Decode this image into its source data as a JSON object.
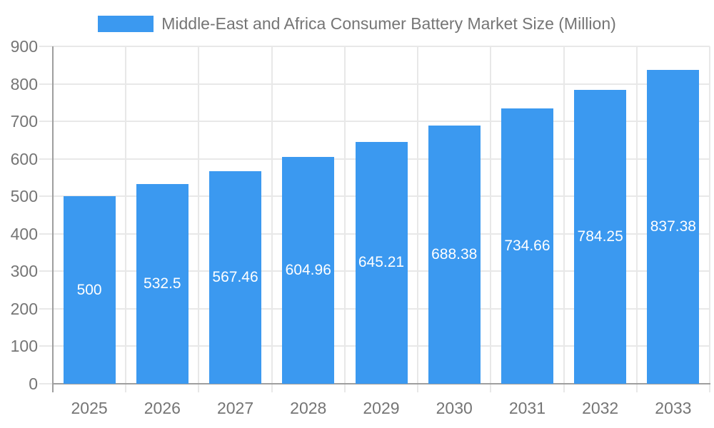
{
  "chart_data": {
    "type": "bar",
    "title": "Middle-East and Africa Consumer Battery Market Size (Million)",
    "categories": [
      "2025",
      "2026",
      "2027",
      "2028",
      "2029",
      "2030",
      "2031",
      "2032",
      "2033"
    ],
    "values": [
      500,
      532.5,
      567.46,
      604.96,
      645.21,
      688.38,
      734.66,
      784.25,
      837.38
    ],
    "value_labels": [
      "500",
      "532.5",
      "567.46",
      "604.96",
      "645.21",
      "688.38",
      "734.66",
      "784.25",
      "837.38"
    ],
    "xlabel": "",
    "ylabel": "",
    "ylim": [
      0,
      900
    ],
    "ytick_interval": 100,
    "yticks": [
      "0",
      "100",
      "200",
      "300",
      "400",
      "500",
      "600",
      "700",
      "800",
      "900"
    ],
    "grid": true,
    "legend_position": "top",
    "colors": {
      "bar": "#3B99F0",
      "grid": "#e8e8e8",
      "axis": "#9e9e9e",
      "label_text": "#757575",
      "value_text": "#ffffff",
      "background": "#ffffff"
    }
  }
}
